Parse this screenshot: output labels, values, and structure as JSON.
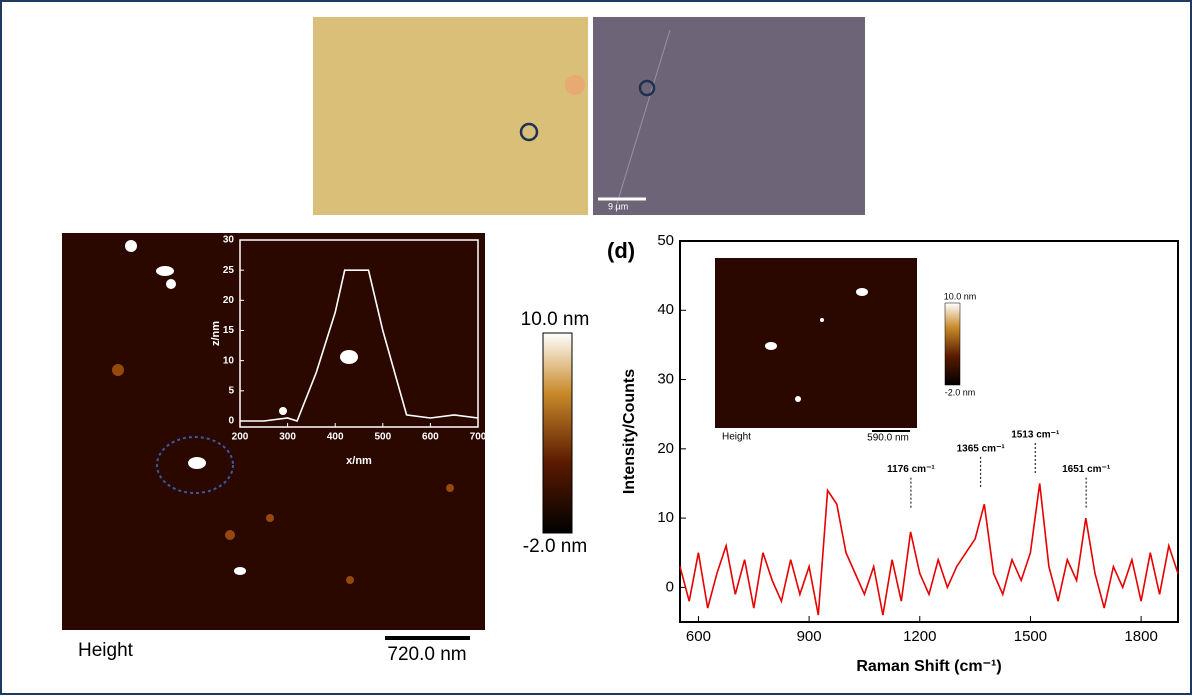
{
  "chart_data": [
    {
      "type": "line",
      "panel_label": "(d)",
      "xlabel": "Raman Shift (cm⁻¹)",
      "ylabel": "Intensity/Counts",
      "x": [
        550,
        575,
        600,
        625,
        650,
        675,
        700,
        725,
        750,
        775,
        800,
        825,
        850,
        875,
        900,
        925,
        950,
        975,
        1000,
        1025,
        1050,
        1075,
        1100,
        1125,
        1150,
        1175,
        1200,
        1225,
        1250,
        1275,
        1300,
        1325,
        1350,
        1375,
        1400,
        1425,
        1450,
        1475,
        1500,
        1525,
        1550,
        1575,
        1600,
        1625,
        1650,
        1675,
        1700,
        1725,
        1750,
        1775,
        1800,
        1825,
        1850,
        1875,
        1900
      ],
      "values": [
        3,
        -2,
        5,
        -3,
        2,
        6,
        -1,
        4,
        -3,
        5,
        1,
        -2,
        4,
        -1,
        3,
        -4,
        14,
        12,
        5,
        2,
        -1,
        3,
        -4,
        4,
        -2,
        8,
        2,
        -1,
        4,
        0,
        3,
        5,
        7,
        12,
        2,
        -1,
        4,
        1,
        5,
        15,
        3,
        -2,
        4,
        1,
        10,
        2,
        -3,
        3,
        0,
        4,
        -2,
        5,
        -1,
        6,
        2
      ],
      "color": "#e60000",
      "xlim": [
        550,
        1900
      ],
      "ylim": [
        -5,
        50
      ],
      "xticks": [
        600,
        900,
        1200,
        1500,
        1800
      ],
      "yticks": [
        0,
        10,
        20,
        30,
        40,
        50
      ],
      "annotations": [
        {
          "text": "1176 cm⁻¹",
          "x": 1176,
          "y": 17
        },
        {
          "text": "1365 cm⁻¹",
          "x": 1365,
          "y": 20
        },
        {
          "text": "1513 cm⁻¹",
          "x": 1513,
          "y": 22
        },
        {
          "text": "1651 cm⁻¹",
          "x": 1651,
          "y": 17
        }
      ]
    },
    {
      "type": "line",
      "xlabel": "x/nm",
      "ylabel": "z/nm",
      "x": [
        200,
        250,
        300,
        320,
        360,
        400,
        420,
        470,
        500,
        550,
        600,
        650,
        700
      ],
      "values": [
        0,
        0,
        0.5,
        0,
        8,
        18,
        25,
        25,
        15,
        1,
        0.5,
        1,
        0.5
      ],
      "color": "#ffffff",
      "xlim": [
        200,
        700
      ],
      "ylim": [
        -1,
        30
      ],
      "xticks": [
        200,
        300,
        400,
        500,
        600,
        700
      ],
      "yticks": [
        0,
        5,
        10,
        15,
        20,
        25,
        30
      ]
    }
  ],
  "figure": {
    "micrograph_scale": "9 µm",
    "afm": {
      "label": "Height",
      "scale": "720.0 nm",
      "colorbar_max": "10.0 nm",
      "colorbar_min": "-2.0 nm"
    },
    "raman_inset": {
      "label": "Height",
      "scale": "590.0 nm",
      "colorbar_max": "10.0 nm",
      "colorbar_min": "-2.0 nm"
    }
  }
}
